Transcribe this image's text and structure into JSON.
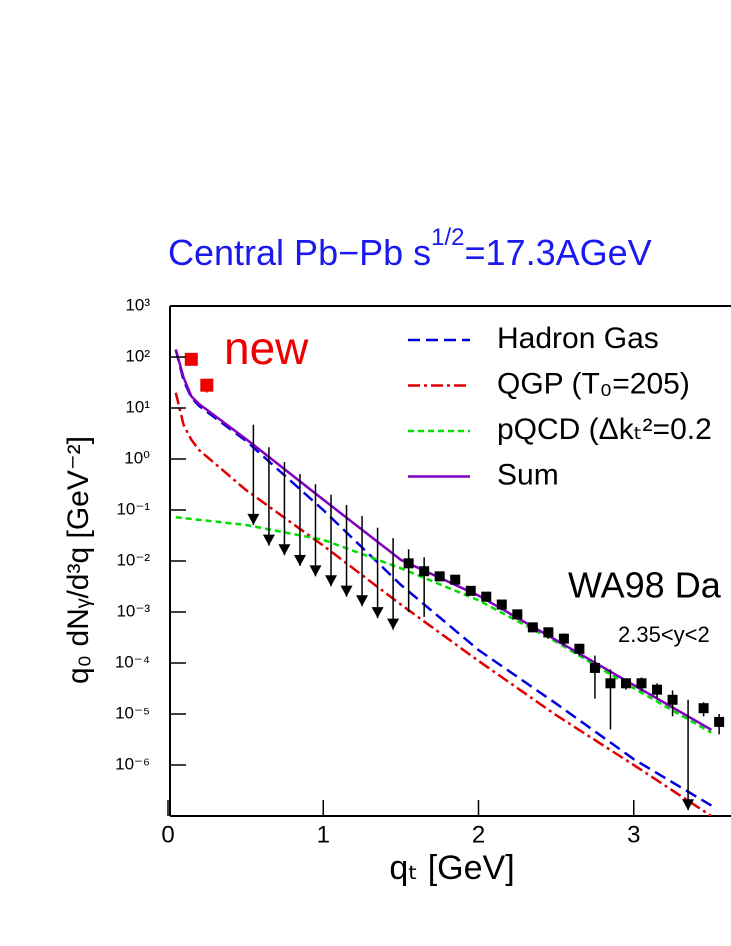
{
  "chart_data": {
    "type": "line",
    "title": "Central Pb−Pb  s",
    "title_superscript": "1/2",
    "title_suffix": "=17.3AGeV",
    "xlabel": "qₜ [GeV]",
    "ylabel": "q₀ dNᵧ/d³q  [GeV⁻²]",
    "log_y": true,
    "legend": "upper right",
    "xlim": [
      0,
      3.62
    ],
    "xticks": [
      0,
      1,
      2,
      3
    ],
    "ylim": [
      1e-07,
      1000
    ],
    "yticks": [
      {
        "value": 1000,
        "label": "10³"
      },
      {
        "value": 100,
        "label": "10²"
      },
      {
        "value": 10,
        "label": "10¹"
      },
      {
        "value": 1,
        "label": "10⁰"
      },
      {
        "value": 0.1,
        "label": "10⁻¹"
      },
      {
        "value": 0.01,
        "label": "10⁻²"
      },
      {
        "value": 0.001,
        "label": "10⁻³"
      },
      {
        "value": 0.0001,
        "label": "10⁻⁴"
      },
      {
        "value": 1e-05,
        "label": "10⁻⁵"
      },
      {
        "value": 1e-06,
        "label": "10⁻⁶"
      }
    ],
    "series": [
      {
        "name": "Hadron Gas",
        "color": "#0000dd",
        "dash": "12 6",
        "x": [
          0.05,
          0.1,
          0.15,
          0.2,
          0.5,
          1.0,
          1.5,
          2.0,
          2.5,
          3.0,
          3.5
        ],
        "values": [
          140,
          35,
          16,
          11,
          2.3,
          0.1,
          0.0034,
          0.00018,
          1.6e-05,
          1.3e-06,
          1.6e-07
        ]
      },
      {
        "name": "QGP (T₀=205)",
        "color": "#e00000",
        "dash": "12 4 3 4",
        "x": [
          0.05,
          0.1,
          0.15,
          0.2,
          0.5,
          1.0,
          1.5,
          2.0,
          2.5,
          3.0,
          3.5
        ],
        "values": [
          20,
          4.7,
          2.4,
          1.5,
          0.25,
          0.02,
          0.0014,
          0.00011,
          9.5e-06,
          1e-06,
          1e-07
        ]
      },
      {
        "name": "pQCD (Δkₜ²=0.2",
        "color": "#00dd00",
        "dash": "6 4",
        "x": [
          0.05,
          0.5,
          1.0,
          1.5,
          2.0,
          2.5,
          3.0,
          3.5
        ],
        "values": [
          0.072,
          0.051,
          0.026,
          0.0072,
          0.0017,
          0.00026,
          3.2e-05,
          4.3e-06
        ]
      },
      {
        "name": "Sum",
        "color": "#8000c0",
        "dash": "",
        "x": [
          0.05,
          0.1,
          0.15,
          0.2,
          0.5,
          1.0,
          1.5,
          2.0,
          2.5,
          3.0,
          3.5
        ],
        "values": [
          140,
          40,
          17,
          12,
          2.5,
          0.16,
          0.0105,
          0.0021,
          0.00028,
          3.7e-05,
          4.9e-06
        ]
      }
    ],
    "data_points": {
      "color": "#000000",
      "x": [
        1.55,
        1.65,
        1.75,
        1.85,
        1.95,
        2.05,
        2.15,
        2.25,
        2.35,
        2.45,
        2.55,
        2.65,
        2.75,
        2.85,
        2.95,
        3.05,
        3.15,
        3.25,
        3.45,
        3.55
      ],
      "values": [
        0.009,
        0.0063,
        0.005,
        0.0043,
        0.0026,
        0.002,
        0.0014,
        0.0009,
        0.0005,
        0.0004,
        0.0003,
        0.00019,
        8e-05,
        4e-05,
        4e-05,
        4e-05,
        3e-05,
        1.9e-05,
        1.3e-05,
        7e-06
      ],
      "errors": [
        0.008,
        0.0055,
        0.001,
        0.0008,
        0.0005,
        0.0004,
        0.0003,
        0.0002,
        0.0001,
        0.0001,
        8e-05,
        5e-05,
        6e-05,
        3.5e-05,
        1e-05,
        1.2e-05,
        1e-05,
        1e-05,
        4e-06,
        3e-06
      ]
    },
    "new_points": {
      "color": "#ee0000",
      "x": [
        0.15,
        0.25
      ],
      "values": [
        90,
        28
      ],
      "errors": [
        15,
        8
      ]
    },
    "upper_limits": {
      "color": "#000000",
      "x": [
        0.55,
        0.65,
        0.75,
        0.85,
        0.95,
        1.05,
        1.15,
        1.25,
        1.35,
        1.45,
        3.35
      ],
      "upper": [
        4.7,
        1.7,
        0.87,
        0.51,
        0.32,
        0.2,
        0.125,
        0.076,
        0.045,
        0.028,
        1.9e-05
      ],
      "lower": [
        0.051,
        0.02,
        0.013,
        0.008,
        0.005,
        0.0032,
        0.002,
        0.0013,
        0.00076,
        0.00045,
        1.3e-07
      ]
    },
    "annotations": [
      {
        "text": "new",
        "color": "#ee0000"
      },
      {
        "text": "WA98 Da",
        "color": "#000000"
      },
      {
        "text": "2.35<y<2",
        "color": "#000000"
      }
    ]
  }
}
